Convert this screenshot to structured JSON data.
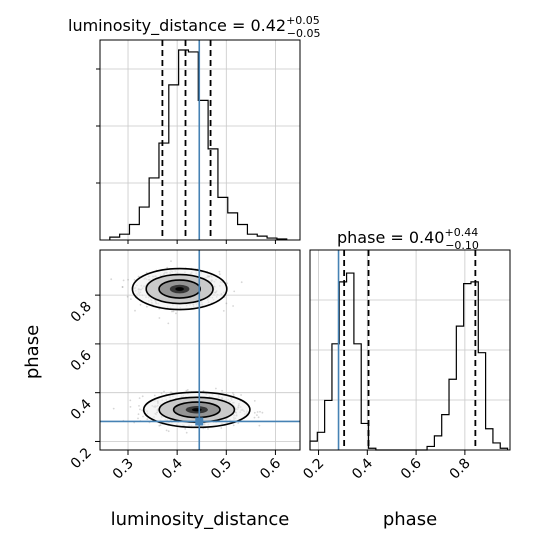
{
  "chart_data": {
    "type": "corner",
    "colors": {
      "truth": "#4682b4",
      "hist": "#000000",
      "quantile": "#000000",
      "grid": "#c8c8c8",
      "scatter": "#8a8a8a",
      "contour_fill_levels": [
        "#f0f0f0",
        "#c8c8c8",
        "#909090",
        "#303030",
        "#000000"
      ]
    },
    "params": [
      {
        "key": "luminosity_distance",
        "xlabel": "luminosity_distance"
      },
      {
        "key": "phase",
        "xlabel": "phase",
        "ylabel": "phase"
      }
    ],
    "titles": {
      "luminosity_distance": {
        "prefix": "luminosity_distance = ",
        "value": "0.42",
        "plus": "+0.05",
        "minus": "−0.05"
      },
      "phase": {
        "prefix": "phase = ",
        "value": "0.40",
        "plus": "+0.44",
        "minus": "−0.10"
      }
    },
    "axes": {
      "luminosity_distance": {
        "range": [
          0.243,
          0.65
        ],
        "ticks": [
          0.3,
          0.4,
          0.5,
          0.6
        ],
        "tick_labels": [
          "0.3",
          "0.4",
          "0.5",
          "0.6"
        ]
      },
      "phase": {
        "range": [
          0.165,
          0.985
        ],
        "ticks": [
          0.2,
          0.4,
          0.6,
          0.8
        ],
        "tick_labels": [
          "0.2",
          "0.4",
          "0.6",
          "0.8"
        ]
      }
    },
    "truth": {
      "luminosity_distance": 0.445,
      "phase": 0.282
    },
    "quantiles": {
      "luminosity_distance": [
        0.37,
        0.417,
        0.468
      ],
      "phase": [
        0.305,
        0.405,
        0.843
      ]
    },
    "hist_luminosity_distance": {
      "edges": [
        0.263,
        0.283,
        0.303,
        0.323,
        0.343,
        0.363,
        0.383,
        0.403,
        0.423,
        0.443,
        0.463,
        0.483,
        0.503,
        0.523,
        0.543,
        0.563,
        0.583,
        0.603,
        0.623
      ],
      "counts": [
        1.5,
        3,
        8,
        17,
        32,
        50,
        80,
        98,
        97,
        72,
        47,
        22,
        14,
        8,
        3,
        2,
        1,
        0.5
      ]
    },
    "hist_phase": {
      "edges": [
        0.165,
        0.195,
        0.225,
        0.255,
        0.285,
        0.315,
        0.345,
        0.375,
        0.405,
        0.435,
        0.465,
        0.495,
        0.525,
        0.555,
        0.585,
        0.615,
        0.645,
        0.675,
        0.705,
        0.735,
        0.765,
        0.795,
        0.825,
        0.855,
        0.885,
        0.915,
        0.945,
        0.975
      ],
      "counts": [
        5,
        10,
        28,
        60,
        95,
        100,
        60,
        15,
        1,
        0,
        0,
        0,
        0,
        0,
        0,
        0,
        2,
        8,
        20,
        40,
        70,
        94,
        95,
        55,
        12,
        4,
        1
      ]
    },
    "modes": [
      {
        "mean": [
          0.405,
          0.825
        ],
        "sd": [
          0.04,
          0.035
        ]
      },
      {
        "mean": [
          0.44,
          0.33
        ],
        "sd": [
          0.045,
          0.03
        ]
      }
    ]
  }
}
